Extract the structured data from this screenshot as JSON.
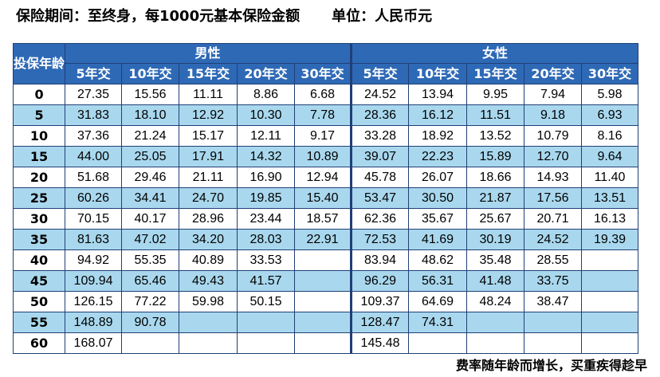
{
  "header": {
    "title": "保险期间：至终身，每1000元基本保险金额",
    "unit": "单位：人民币元"
  },
  "table": {
    "age_header": "投保年龄",
    "male_label": "男性",
    "female_label": "女性",
    "terms": [
      "5年交",
      "10年交",
      "15年交",
      "20年交",
      "30年交"
    ],
    "rows": [
      {
        "age": "0",
        "male": [
          "27.35",
          "15.56",
          "11.11",
          "8.86",
          "6.68"
        ],
        "female": [
          "24.52",
          "13.94",
          "9.95",
          "7.94",
          "5.98"
        ]
      },
      {
        "age": "5",
        "male": [
          "31.83",
          "18.10",
          "12.92",
          "10.30",
          "7.78"
        ],
        "female": [
          "28.36",
          "16.12",
          "11.51",
          "9.18",
          "6.93"
        ]
      },
      {
        "age": "10",
        "male": [
          "37.36",
          "21.24",
          "15.17",
          "12.11",
          "9.17"
        ],
        "female": [
          "33.28",
          "18.92",
          "13.52",
          "10.79",
          "8.16"
        ]
      },
      {
        "age": "15",
        "male": [
          "44.00",
          "25.05",
          "17.91",
          "14.32",
          "10.89"
        ],
        "female": [
          "39.07",
          "22.23",
          "15.89",
          "12.70",
          "9.64"
        ]
      },
      {
        "age": "20",
        "male": [
          "51.68",
          "29.46",
          "21.11",
          "16.90",
          "12.94"
        ],
        "female": [
          "45.78",
          "26.07",
          "18.66",
          "14.93",
          "11.40"
        ]
      },
      {
        "age": "25",
        "male": [
          "60.26",
          "34.41",
          "24.70",
          "19.85",
          "15.40"
        ],
        "female": [
          "53.47",
          "30.50",
          "21.87",
          "17.56",
          "13.51"
        ]
      },
      {
        "age": "30",
        "male": [
          "70.15",
          "40.17",
          "28.96",
          "23.44",
          "18.57"
        ],
        "female": [
          "62.36",
          "35.67",
          "25.67",
          "20.71",
          "16.13"
        ]
      },
      {
        "age": "35",
        "male": [
          "81.63",
          "47.02",
          "34.20",
          "28.03",
          "22.91"
        ],
        "female": [
          "72.53",
          "41.69",
          "30.19",
          "24.52",
          "19.39"
        ]
      },
      {
        "age": "40",
        "male": [
          "94.92",
          "55.35",
          "40.89",
          "33.53",
          ""
        ],
        "female": [
          "83.94",
          "48.62",
          "35.48",
          "28.55",
          ""
        ]
      },
      {
        "age": "45",
        "male": [
          "109.94",
          "65.46",
          "49.43",
          "41.57",
          ""
        ],
        "female": [
          "96.29",
          "56.31",
          "41.48",
          "33.75",
          ""
        ]
      },
      {
        "age": "50",
        "male": [
          "126.15",
          "77.22",
          "59.98",
          "50.15",
          ""
        ],
        "female": [
          "109.37",
          "64.69",
          "48.24",
          "38.47",
          ""
        ]
      },
      {
        "age": "55",
        "male": [
          "148.89",
          "90.78",
          "",
          "",
          ""
        ],
        "female": [
          "128.47",
          "74.31",
          "",
          "",
          ""
        ]
      },
      {
        "age": "60",
        "male": [
          "168.07",
          "",
          "",
          "",
          ""
        ],
        "female": [
          "145.48",
          "",
          "",
          "",
          ""
        ]
      }
    ]
  },
  "footer": {
    "note": "费率随年龄而增长，买重疾得趁早"
  },
  "colors": {
    "header_bg": "#2e69b6",
    "alt_row_bg": "#a9d8ee",
    "border": "#1f3f76"
  }
}
